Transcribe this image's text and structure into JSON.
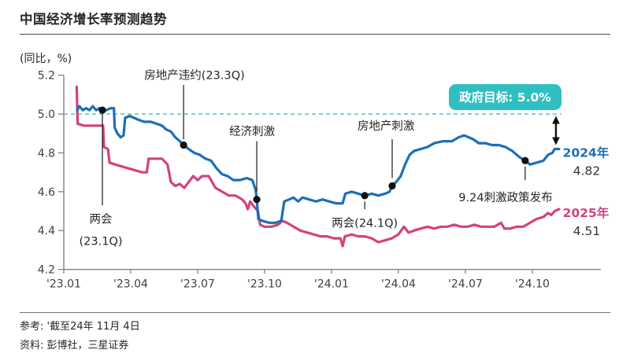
{
  "page": {
    "title": "中国经济增长率预测趋势",
    "unit_label": "(同比，%)"
  },
  "chart_data": {
    "type": "line",
    "title": "中国经济增长率预测趋势",
    "ylabel": "(同比，%)",
    "x_unit": "months since 2023-01, data through 2024-11",
    "ylim": [
      4.2,
      5.2
    ],
    "grid": false,
    "legend_position": "right-end-labels",
    "yticks": [
      {
        "label": "5.2",
        "v": 5.2
      },
      {
        "label": "5.0",
        "v": 5.0
      },
      {
        "label": "4.8",
        "v": 4.8
      },
      {
        "label": "4.6",
        "v": 4.6
      },
      {
        "label": "4.4",
        "v": 4.4
      },
      {
        "label": "4.2",
        "v": 4.2
      }
    ],
    "xticks": [
      {
        "label": "'23.01",
        "m": 0
      },
      {
        "label": "'23.04",
        "m": 3
      },
      {
        "label": "'23.07",
        "m": 6
      },
      {
        "label": "'23.10",
        "m": 9
      },
      {
        "label": "'24.01",
        "m": 12
      },
      {
        "label": "'24.04",
        "m": 15
      },
      {
        "label": "'24.07",
        "m": 18
      },
      {
        "label": "'24.10",
        "m": 21
      }
    ],
    "target_line": {
      "value": 5.0,
      "label": "政府目标: 5.0%",
      "badge_color": "#2FBFC0",
      "dash_color": "#4EC4CA",
      "text_color": "#ffffff"
    },
    "series": [
      {
        "name": "2024年",
        "color": "#1C6FB6",
        "end_value": "4.82",
        "value_color": "#333333",
        "points": [
          [
            0.6,
            5.02
          ],
          [
            0.7,
            5.04
          ],
          [
            0.85,
            5.02
          ],
          [
            1.0,
            5.03
          ],
          [
            1.15,
            5.02
          ],
          [
            1.3,
            5.04
          ],
          [
            1.45,
            5.02
          ],
          [
            1.6,
            5.03
          ],
          [
            1.73,
            5.02
          ],
          [
            1.9,
            5.02
          ],
          [
            2.1,
            5.03
          ],
          [
            2.25,
            5.03
          ],
          [
            2.28,
            4.93
          ],
          [
            2.4,
            4.9
          ],
          [
            2.55,
            4.88
          ],
          [
            2.68,
            4.89
          ],
          [
            2.75,
            4.98
          ],
          [
            2.95,
            4.99
          ],
          [
            3.15,
            4.98
          ],
          [
            3.35,
            4.97
          ],
          [
            3.6,
            4.96
          ],
          [
            3.9,
            4.96
          ],
          [
            4.15,
            4.95
          ],
          [
            4.4,
            4.94
          ],
          [
            4.6,
            4.92
          ],
          [
            4.8,
            4.91
          ],
          [
            5.0,
            4.88
          ],
          [
            5.2,
            4.86
          ],
          [
            5.37,
            4.84
          ],
          [
            5.6,
            4.82
          ],
          [
            5.85,
            4.8
          ],
          [
            6.1,
            4.79
          ],
          [
            6.35,
            4.77
          ],
          [
            6.6,
            4.76
          ],
          [
            6.85,
            4.72
          ],
          [
            7.1,
            4.69
          ],
          [
            7.35,
            4.68
          ],
          [
            7.6,
            4.66
          ],
          [
            7.9,
            4.66
          ],
          [
            8.2,
            4.67
          ],
          [
            8.45,
            4.66
          ],
          [
            8.6,
            4.61
          ],
          [
            8.65,
            4.56
          ],
          [
            8.72,
            4.46
          ],
          [
            8.9,
            4.45
          ],
          [
            9.2,
            4.44
          ],
          [
            9.5,
            4.44
          ],
          [
            9.75,
            4.45
          ],
          [
            9.88,
            4.55
          ],
          [
            10.1,
            4.56
          ],
          [
            10.3,
            4.57
          ],
          [
            10.5,
            4.55
          ],
          [
            10.7,
            4.57
          ],
          [
            11.0,
            4.56
          ],
          [
            11.3,
            4.55
          ],
          [
            11.6,
            4.56
          ],
          [
            11.9,
            4.55
          ],
          [
            12.2,
            4.54
          ],
          [
            12.5,
            4.54
          ],
          [
            12.62,
            4.59
          ],
          [
            12.9,
            4.6
          ],
          [
            13.2,
            4.59
          ],
          [
            13.49,
            4.58
          ],
          [
            13.8,
            4.59
          ],
          [
            14.1,
            4.58
          ],
          [
            14.4,
            4.59
          ],
          [
            14.6,
            4.6
          ],
          [
            14.72,
            4.63
          ],
          [
            14.9,
            4.65
          ],
          [
            15.1,
            4.68
          ],
          [
            15.3,
            4.74
          ],
          [
            15.5,
            4.79
          ],
          [
            15.7,
            4.81
          ],
          [
            16.0,
            4.82
          ],
          [
            16.3,
            4.83
          ],
          [
            16.6,
            4.85
          ],
          [
            17.0,
            4.86
          ],
          [
            17.4,
            4.86
          ],
          [
            17.7,
            4.88
          ],
          [
            17.95,
            4.89
          ],
          [
            18.15,
            4.88
          ],
          [
            18.35,
            4.87
          ],
          [
            18.6,
            4.85
          ],
          [
            18.9,
            4.85
          ],
          [
            19.2,
            4.84
          ],
          [
            19.5,
            4.84
          ],
          [
            19.8,
            4.83
          ],
          [
            20.1,
            4.81
          ],
          [
            20.4,
            4.78
          ],
          [
            20.68,
            4.76
          ],
          [
            20.9,
            4.74
          ],
          [
            21.2,
            4.75
          ],
          [
            21.5,
            4.76
          ],
          [
            21.7,
            4.79
          ],
          [
            21.9,
            4.8
          ],
          [
            22.0,
            4.82
          ],
          [
            22.2,
            4.82
          ]
        ]
      },
      {
        "name": "2025年",
        "color": "#D4417E",
        "end_value": "4.51",
        "value_color": "#333333",
        "points": [
          [
            0.58,
            5.14
          ],
          [
            0.62,
            4.95
          ],
          [
            0.9,
            4.94
          ],
          [
            1.2,
            4.94
          ],
          [
            1.5,
            4.94
          ],
          [
            1.76,
            4.94
          ],
          [
            1.8,
            4.83
          ],
          [
            1.98,
            4.82
          ],
          [
            2.05,
            4.75
          ],
          [
            2.3,
            4.74
          ],
          [
            2.6,
            4.73
          ],
          [
            2.9,
            4.72
          ],
          [
            3.2,
            4.71
          ],
          [
            3.5,
            4.7
          ],
          [
            3.72,
            4.7
          ],
          [
            3.8,
            4.77
          ],
          [
            4.1,
            4.77
          ],
          [
            4.4,
            4.77
          ],
          [
            4.65,
            4.74
          ],
          [
            4.8,
            4.65
          ],
          [
            5.0,
            4.63
          ],
          [
            5.2,
            4.64
          ],
          [
            5.4,
            4.62
          ],
          [
            5.6,
            4.65
          ],
          [
            5.8,
            4.68
          ],
          [
            6.0,
            4.66
          ],
          [
            6.2,
            4.68
          ],
          [
            6.5,
            4.68
          ],
          [
            6.8,
            4.62
          ],
          [
            7.1,
            4.6
          ],
          [
            7.4,
            4.58
          ],
          [
            7.7,
            4.58
          ],
          [
            8.0,
            4.56
          ],
          [
            8.15,
            4.54
          ],
          [
            8.25,
            4.51
          ],
          [
            8.35,
            4.55
          ],
          [
            8.55,
            4.52
          ],
          [
            8.7,
            4.5
          ],
          [
            8.8,
            4.43
          ],
          [
            9.0,
            4.42
          ],
          [
            9.3,
            4.42
          ],
          [
            9.6,
            4.43
          ],
          [
            9.8,
            4.45
          ],
          [
            10.0,
            4.44
          ],
          [
            10.3,
            4.42
          ],
          [
            10.6,
            4.4
          ],
          [
            10.9,
            4.39
          ],
          [
            11.2,
            4.38
          ],
          [
            11.5,
            4.37
          ],
          [
            11.8,
            4.37
          ],
          [
            12.1,
            4.36
          ],
          [
            12.4,
            4.36
          ],
          [
            12.5,
            4.32
          ],
          [
            12.6,
            4.37
          ],
          [
            12.9,
            4.38
          ],
          [
            13.2,
            4.37
          ],
          [
            13.5,
            4.37
          ],
          [
            13.8,
            4.36
          ],
          [
            14.1,
            4.34
          ],
          [
            14.4,
            4.35
          ],
          [
            14.7,
            4.36
          ],
          [
            15.0,
            4.38
          ],
          [
            15.25,
            4.42
          ],
          [
            15.45,
            4.39
          ],
          [
            15.7,
            4.4
          ],
          [
            16.0,
            4.41
          ],
          [
            16.3,
            4.42
          ],
          [
            16.6,
            4.41
          ],
          [
            16.9,
            4.42
          ],
          [
            17.2,
            4.42
          ],
          [
            17.5,
            4.43
          ],
          [
            17.8,
            4.42
          ],
          [
            18.1,
            4.42
          ],
          [
            18.4,
            4.43
          ],
          [
            18.7,
            4.42
          ],
          [
            19.0,
            4.42
          ],
          [
            19.3,
            4.42
          ],
          [
            19.6,
            4.44
          ],
          [
            19.75,
            4.41
          ],
          [
            20.0,
            4.41
          ],
          [
            20.3,
            4.42
          ],
          [
            20.6,
            4.42
          ],
          [
            20.9,
            4.44
          ],
          [
            21.2,
            4.46
          ],
          [
            21.5,
            4.47
          ],
          [
            21.7,
            4.49
          ],
          [
            21.85,
            4.48
          ],
          [
            22.0,
            4.5
          ],
          [
            22.2,
            4.51
          ]
        ]
      }
    ],
    "annotations": [
      {
        "id": "lianghui-23",
        "text_lines": [
          "两会",
          "(23.1Q)"
        ],
        "dot": {
          "m": 1.73,
          "v": 5.02
        },
        "connector": {
          "v_from": 5.0,
          "v_to": 4.53
        },
        "label": {
          "m": 1.66,
          "v": 4.46
        }
      },
      {
        "id": "property-default",
        "text_lines": [
          "房地产违约(23.3Q)"
        ],
        "dot": {
          "m": 5.37,
          "v": 4.84
        },
        "connector": {
          "v_from": 5.15,
          "v_to": 4.87
        },
        "label": {
          "m": 5.86,
          "v": 5.2
        }
      },
      {
        "id": "economic-stimulus",
        "text_lines": [
          "经济刺激"
        ],
        "dot": {
          "m": 8.65,
          "v": 4.56
        },
        "connector": {
          "v_from": 4.86,
          "v_to": 4.6
        },
        "label": {
          "m": 8.44,
          "v": 4.91
        }
      },
      {
        "id": "lianghui-24",
        "text_lines": [
          "两会(24.1Q)"
        ],
        "dot": {
          "m": 13.49,
          "v": 4.58
        },
        "connector": {
          "v_from": 4.55,
          "v_to": 4.51
        },
        "label": {
          "m": 13.49,
          "v": 4.44
        }
      },
      {
        "id": "property-stimulus",
        "text_lines": [
          "房地产刺激"
        ],
        "dot": {
          "m": 14.72,
          "v": 4.63
        },
        "connector": {
          "v_from": 4.87,
          "v_to": 4.67
        },
        "label": {
          "m": 14.44,
          "v": 4.94
        }
      },
      {
        "id": "sep24-stimulus",
        "text_lines": [
          "9.24刺激政策发布"
        ],
        "dot": {
          "m": 20.68,
          "v": 4.76
        },
        "connector": {
          "v_from": 4.73,
          "v_to": 4.66
        },
        "label": {
          "m": 19.8,
          "v": 4.57
        }
      }
    ],
    "gap_arrow": {
      "m": 22.06,
      "v_from": 4.99,
      "v_to": 4.84
    }
  },
  "footer": {
    "reference": "参考: '截至24年 11月 4日",
    "source": "资料: 彭博社，三星证券"
  }
}
